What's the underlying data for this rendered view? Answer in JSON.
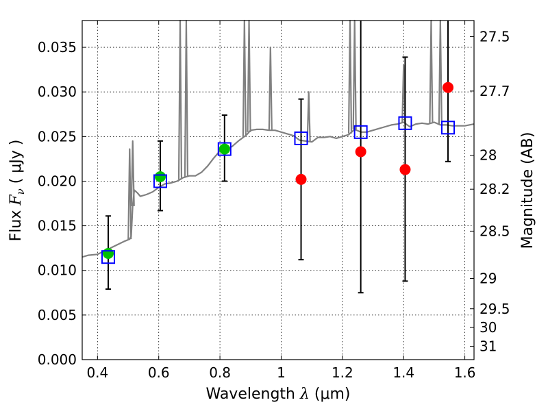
{
  "chart_data": {
    "type": "scatter",
    "xlabel": {
      "prefix": "Wavelength  ",
      "symbol": "λ",
      "unit": " (μm)"
    },
    "ylabel": {
      "prefix": "Flux  ",
      "symbol": "F",
      "subscript": "ν",
      "unit": "  ( μJy )"
    },
    "ylabel_right": "Magnitude (AB)",
    "xlim": [
      0.35,
      1.63
    ],
    "ylim": [
      0,
      0.038
    ],
    "x_ticks": [
      {
        "value": 0.4,
        "label": "0.4"
      },
      {
        "value": 0.6,
        "label": "0.6"
      },
      {
        "value": 0.8,
        "label": "0.8"
      },
      {
        "value": 1.0,
        "label": "1"
      },
      {
        "value": 1.2,
        "label": "1.2"
      },
      {
        "value": 1.4,
        "label": "1.4"
      },
      {
        "value": 1.6,
        "label": "1.6"
      }
    ],
    "y_ticks": [
      {
        "value": 0.0,
        "label": "0.000"
      },
      {
        "value": 0.005,
        "label": "0.005"
      },
      {
        "value": 0.01,
        "label": "0.010"
      },
      {
        "value": 0.015,
        "label": "0.015"
      },
      {
        "value": 0.02,
        "label": "0.020"
      },
      {
        "value": 0.025,
        "label": "0.025"
      },
      {
        "value": 0.03,
        "label": "0.030"
      },
      {
        "value": 0.035,
        "label": "0.035"
      }
    ],
    "right_ticks": [
      {
        "flux": 0.0362,
        "label": "27.5"
      },
      {
        "flux": 0.0301,
        "label": "27.7"
      },
      {
        "flux": 0.0229,
        "label": "28"
      },
      {
        "flux": 0.0191,
        "label": "28.2"
      },
      {
        "flux": 0.0144,
        "label": "28.5"
      },
      {
        "flux": 0.0091,
        "label": "29"
      },
      {
        "flux": 0.0057,
        "label": "29.5"
      },
      {
        "flux": 0.0036,
        "label": "30"
      },
      {
        "flux": 0.0015,
        "label": "31"
      }
    ],
    "grid": true,
    "colors": {
      "spectrum": "#808080",
      "model": "#0000ff",
      "green": "#00c000",
      "red": "#ff0000",
      "errorbar": "#000000"
    },
    "spectrum": {
      "x": [
        0.35,
        0.37,
        0.4,
        0.43,
        0.46,
        0.49,
        0.505,
        0.51,
        0.515,
        0.52,
        0.53,
        0.54,
        0.56,
        0.58,
        0.6,
        0.62,
        0.64,
        0.66,
        0.68,
        0.7,
        0.72,
        0.74,
        0.76,
        0.78,
        0.8,
        0.82,
        0.84,
        0.86,
        0.88,
        0.89,
        0.9,
        0.92,
        0.94,
        0.96,
        0.98,
        1.0,
        1.02,
        1.04,
        1.06,
        1.08,
        1.1,
        1.12,
        1.14,
        1.16,
        1.18,
        1.2,
        1.22,
        1.24,
        1.26,
        1.28,
        1.3,
        1.32,
        1.34,
        1.36,
        1.38,
        1.4,
        1.42,
        1.44,
        1.46,
        1.48,
        1.5,
        1.52,
        1.54,
        1.56,
        1.58,
        1.6,
        1.63
      ],
      "y": [
        0.0115,
        0.0117,
        0.0118,
        0.0123,
        0.0128,
        0.0133,
        0.0135,
        0.0138,
        0.0172,
        0.019,
        0.0187,
        0.0183,
        0.0185,
        0.0188,
        0.0193,
        0.0197,
        0.0198,
        0.02,
        0.0204,
        0.0206,
        0.0206,
        0.021,
        0.0217,
        0.0226,
        0.0234,
        0.0235,
        0.0239,
        0.0245,
        0.025,
        0.0253,
        0.0257,
        0.0258,
        0.0258,
        0.0257,
        0.0257,
        0.0255,
        0.0253,
        0.0251,
        0.0246,
        0.0245,
        0.0244,
        0.0249,
        0.0249,
        0.025,
        0.0248,
        0.025,
        0.0252,
        0.0258,
        0.0255,
        0.0255,
        0.0257,
        0.0259,
        0.0261,
        0.0263,
        0.0264,
        0.0266,
        0.0261,
        0.0264,
        0.0265,
        0.0264,
        0.0266,
        0.0263,
        0.0263,
        0.0262,
        0.0262,
        0.0262,
        0.0264
      ]
    },
    "emission_lines": [
      {
        "x": 0.505,
        "peak": 0.0236
      },
      {
        "x": 0.515,
        "peak": 0.0245
      },
      {
        "x": 0.67,
        "peak": 0.038
      },
      {
        "x": 0.69,
        "peak": 0.038
      },
      {
        "x": 0.88,
        "peak": 0.038
      },
      {
        "x": 0.895,
        "peak": 0.038
      },
      {
        "x": 0.965,
        "peak": 0.035
      },
      {
        "x": 1.09,
        "peak": 0.03
      },
      {
        "x": 1.225,
        "peak": 0.038
      },
      {
        "x": 1.24,
        "peak": 0.038
      },
      {
        "x": 1.4,
        "peak": 0.033
      },
      {
        "x": 1.49,
        "peak": 0.038
      },
      {
        "x": 1.52,
        "peak": 0.038
      }
    ],
    "model_points": [
      {
        "x": 0.435,
        "y": 0.0115
      },
      {
        "x": 0.605,
        "y": 0.02
      },
      {
        "x": 0.815,
        "y": 0.0236
      },
      {
        "x": 1.065,
        "y": 0.0248
      },
      {
        "x": 1.26,
        "y": 0.0255
      },
      {
        "x": 1.405,
        "y": 0.0265
      },
      {
        "x": 1.545,
        "y": 0.026
      }
    ],
    "observed_points": [
      {
        "x": 0.435,
        "y": 0.0119,
        "err_low": 0.0079,
        "err_high": 0.0161,
        "color": "green"
      },
      {
        "x": 0.605,
        "y": 0.0205,
        "err_low": 0.0167,
        "err_high": 0.0245,
        "color": "green"
      },
      {
        "x": 0.815,
        "y": 0.0236,
        "err_low": 0.02,
        "err_high": 0.0274,
        "color": "green"
      },
      {
        "x": 1.065,
        "y": 0.0202,
        "err_low": 0.0112,
        "err_high": 0.0292,
        "color": "red"
      },
      {
        "x": 1.26,
        "y": 0.0233,
        "err_low": 0.0075,
        "err_high": 0.038,
        "color": "red"
      },
      {
        "x": 1.405,
        "y": 0.0213,
        "err_low": 0.0088,
        "err_high": 0.0339,
        "color": "red"
      },
      {
        "x": 1.545,
        "y": 0.0305,
        "err_low": 0.0222,
        "err_high": 0.038,
        "color": "red"
      }
    ]
  }
}
